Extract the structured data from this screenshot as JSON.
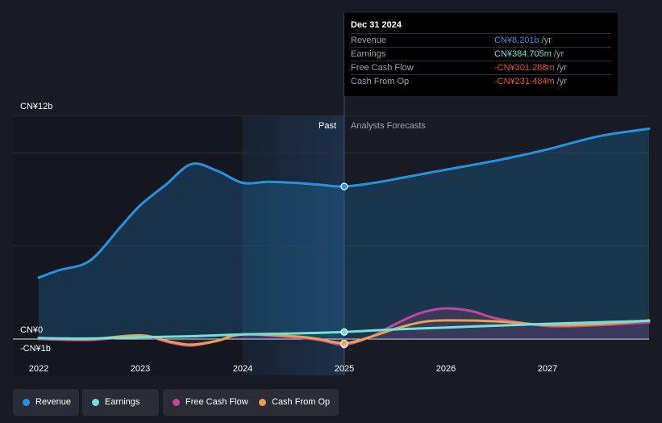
{
  "chart_data": {
    "type": "area",
    "y_axis_labels": [
      "CN¥12b",
      "CN¥0",
      "-CN¥1b"
    ],
    "ylim": [
      -1,
      12
    ],
    "xlim": [
      2022,
      2028
    ],
    "x_ticks": [
      "2022",
      "2023",
      "2024",
      "2025",
      "2026",
      "2027"
    ],
    "x_tick_values": [
      2022,
      2023,
      2024,
      2025,
      2026,
      2027
    ],
    "grid_values": [
      12,
      10,
      5,
      0
    ],
    "past_label": "Past",
    "forecast_label": "Analysts Forecasts",
    "divider_x": 2025.0,
    "past_highlight_start": 2024.0,
    "series": [
      {
        "name": "Revenue",
        "color": "#2394df",
        "fill": true,
        "x": [
          2022.0,
          2022.2,
          2022.5,
          2022.8,
          2023.0,
          2023.25,
          2023.5,
          2023.75,
          2024.0,
          2024.25,
          2024.5,
          2024.75,
          2025.0,
          2025.3,
          2025.6,
          2026.0,
          2026.5,
          2027.0,
          2027.5,
          2028.0
        ],
        "y": [
          3.3,
          3.7,
          4.2,
          6.0,
          7.2,
          8.3,
          9.4,
          9.05,
          8.4,
          8.45,
          8.4,
          8.3,
          8.2,
          8.4,
          8.7,
          9.1,
          9.6,
          10.2,
          10.9,
          11.3
        ]
      },
      {
        "name": "Earnings",
        "color": "#6fe3d6",
        "fill": false,
        "x": [
          2022.0,
          2022.5,
          2023.0,
          2023.5,
          2024.0,
          2024.5,
          2025.0,
          2025.5,
          2026.0,
          2026.5,
          2027.0,
          2027.5,
          2028.0
        ],
        "y": [
          0.05,
          0.03,
          0.1,
          0.15,
          0.25,
          0.3,
          0.38,
          0.52,
          0.62,
          0.72,
          0.82,
          0.9,
          0.98
        ]
      },
      {
        "name": "Free Cash Flow",
        "color": "#c2469a",
        "fill": true,
        "x": [
          2022.0,
          2022.5,
          2023.0,
          2023.3,
          2023.5,
          2023.75,
          2024.0,
          2024.5,
          2024.75,
          2025.0,
          2025.25,
          2025.5,
          2025.75,
          2026.0,
          2026.25,
          2026.5,
          2027.0,
          2027.5,
          2028.0
        ],
        "y": [
          0.0,
          -0.05,
          0.15,
          -0.2,
          -0.35,
          -0.1,
          0.25,
          0.1,
          -0.05,
          -0.3,
          0.1,
          0.8,
          1.4,
          1.65,
          1.5,
          1.1,
          0.7,
          0.75,
          0.9
        ]
      },
      {
        "name": "Cash From Op",
        "color": "#e9a24a",
        "fill": false,
        "x": [
          2022.0,
          2022.5,
          2023.0,
          2023.3,
          2023.5,
          2023.75,
          2024.0,
          2024.5,
          2024.75,
          2025.0,
          2025.25,
          2025.5,
          2025.75,
          2026.0,
          2026.5,
          2027.0,
          2027.5,
          2028.0
        ],
        "y": [
          0.05,
          0.0,
          0.2,
          -0.15,
          -0.3,
          -0.1,
          0.25,
          0.15,
          0.0,
          -0.23,
          0.1,
          0.55,
          0.9,
          1.0,
          0.95,
          0.75,
          0.8,
          1.0
        ]
      }
    ],
    "highlight_points": [
      {
        "series": "Revenue",
        "x": 2025.0,
        "y": 8.2
      },
      {
        "series": "Earnings",
        "x": 2025.0,
        "y": 0.38
      },
      {
        "series": "Free Cash Flow",
        "x": 2025.0,
        "y": -0.3
      },
      {
        "series": "Cash From Op",
        "x": 2025.0,
        "y": -0.23
      }
    ]
  },
  "tooltip": {
    "date": "Dec 31 2024",
    "rows": [
      {
        "label": "Revenue",
        "value": "CN¥8.201b",
        "unit": "/yr",
        "color": "#2394df"
      },
      {
        "label": "Earnings",
        "value": "CN¥384.705m",
        "unit": "/yr",
        "color": "#6fe3d6"
      },
      {
        "label": "Free Cash Flow",
        "value": "-CN¥301.288m",
        "unit": "/yr",
        "color": "#e64a4a"
      },
      {
        "label": "Cash From Op",
        "value": "-CN¥231.484m",
        "unit": "/yr",
        "color": "#e64a4a"
      }
    ]
  },
  "legend": [
    {
      "label": "Revenue",
      "color": "#2394df"
    },
    {
      "label": "Earnings",
      "color": "#6fe3d6"
    },
    {
      "label": "Free Cash Flow",
      "color": "#c2469a"
    },
    {
      "label": "Cash From Op",
      "color": "#e9a24a"
    }
  ]
}
